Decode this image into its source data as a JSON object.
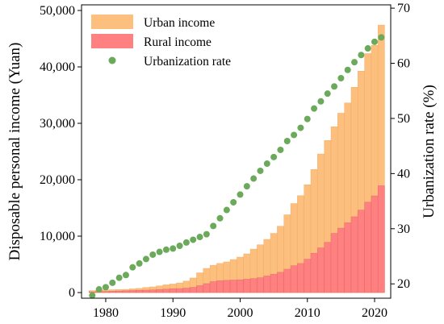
{
  "chart_data": {
    "type": "bar",
    "years": [
      1978,
      1979,
      1980,
      1981,
      1982,
      1983,
      1984,
      1985,
      1986,
      1987,
      1988,
      1989,
      1990,
      1991,
      1992,
      1993,
      1994,
      1995,
      1996,
      1997,
      1998,
      1999,
      2000,
      2001,
      2002,
      2003,
      2004,
      2005,
      2006,
      2007,
      2008,
      2009,
      2010,
      2011,
      2012,
      2013,
      2014,
      2015,
      2016,
      2017,
      2018,
      2019,
      2020,
      2021
    ],
    "series": [
      {
        "name": "Urban income",
        "kind": "bar",
        "axis": "left",
        "color": "#fdbf7d",
        "values": [
          343,
          405,
          478,
          500,
          535,
          565,
          652,
          739,
          900,
          1002,
          1180,
          1373,
          1510,
          1700,
          2027,
          2577,
          3496,
          4283,
          4839,
          5160,
          5425,
          5854,
          6280,
          6860,
          7703,
          8472,
          9422,
          10493,
          11759,
          13786,
          15781,
          17175,
          19109,
          21810,
          24565,
          26955,
          29381,
          31790,
          33616,
          36396,
          39251,
          42359,
          43834,
          47412
        ]
      },
      {
        "name": "Rural income",
        "kind": "bar",
        "axis": "left",
        "color": "#ff8080",
        "values": [
          134,
          160,
          191,
          223,
          270,
          310,
          355,
          398,
          424,
          463,
          545,
          602,
          686,
          709,
          784,
          922,
          1221,
          1578,
          1926,
          2090,
          2162,
          2210,
          2253,
          2366,
          2476,
          2622,
          2936,
          3255,
          3587,
          4140,
          4761,
          5153,
          5919,
          6977,
          7917,
          8896,
          10489,
          11422,
          12363,
          13432,
          14617,
          16021,
          17131,
          18931
        ]
      },
      {
        "name": "Urbanization rate",
        "kind": "scatter",
        "axis": "right",
        "color": "#6aaa5a",
        "values": [
          17.9,
          19.0,
          19.4,
          20.2,
          21.1,
          21.6,
          23.0,
          23.7,
          24.5,
          25.3,
          25.8,
          26.2,
          26.4,
          26.9,
          27.5,
          28.0,
          28.5,
          29.0,
          30.5,
          31.9,
          33.4,
          34.8,
          36.2,
          37.7,
          39.1,
          40.5,
          41.8,
          43.0,
          44.3,
          45.9,
          47.0,
          48.3,
          49.9,
          51.8,
          53.1,
          54.5,
          55.8,
          57.3,
          58.8,
          60.2,
          61.5,
          62.7,
          63.9,
          64.7
        ]
      }
    ],
    "ylabel": "Disposable personal income (Yuan)",
    "ylabel_right": "Urbanization rate (%)",
    "ylim": [
      -1000,
      51000
    ],
    "ylim_right": [
      17.4,
      70.6
    ],
    "xlim": [
      1976.4,
      2022.4
    ],
    "x_ticks": [
      1980,
      1990,
      2000,
      2010,
      2020
    ],
    "x_tick_labels": [
      "1980",
      "1990",
      "2000",
      "2010",
      "2020"
    ],
    "y_ticks": [
      0,
      10000,
      20000,
      30000,
      40000,
      50000
    ],
    "y_tick_labels": [
      "0",
      "10,000",
      "20,000",
      "30,000",
      "40,000",
      "50,000"
    ],
    "y_ticks_right": [
      20,
      30,
      40,
      50,
      60,
      70
    ],
    "y_tick_labels_right": [
      "20",
      "30",
      "40",
      "50",
      "60",
      "70"
    ],
    "legend": [
      "Urban income",
      "Rural income",
      "Urbanization rate"
    ],
    "legend_position": "top-left",
    "grid": false
  }
}
